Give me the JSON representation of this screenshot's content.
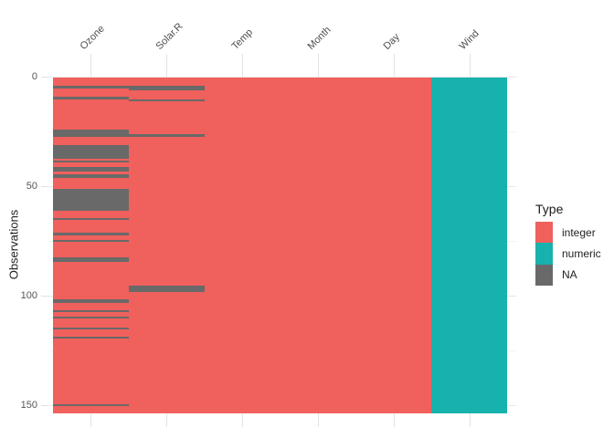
{
  "chart_data": {
    "type": "heatmap",
    "subtype": "missing-data-matrix (vis_dat style)",
    "title": "",
    "x_axis": {
      "position": "top",
      "labels": [
        "Ozone",
        "Solar.R",
        "Temp",
        "Month",
        "Day",
        "Wind"
      ]
    },
    "y_axis": {
      "label": "Observations",
      "ticks": [
        "0",
        "50",
        "100",
        "150"
      ],
      "tick_values": [
        0,
        50,
        100,
        150
      ],
      "minor_tick_values": [
        25,
        75,
        125
      ],
      "range": [
        0,
        153
      ],
      "reversed": true
    },
    "n_observations": 153,
    "columns": [
      {
        "name": "Ozone",
        "type": "integer",
        "na_rows": [
          [
            5,
            5
          ],
          [
            10,
            10
          ],
          [
            25,
            27
          ],
          [
            32,
            37
          ],
          [
            39,
            39
          ],
          [
            42,
            43
          ],
          [
            45,
            46
          ],
          [
            52,
            61
          ],
          [
            65,
            65
          ],
          [
            72,
            72
          ],
          [
            75,
            75
          ],
          [
            83,
            84
          ],
          [
            102,
            103
          ],
          [
            107,
            107
          ],
          [
            110,
            110
          ],
          [
            115,
            115
          ],
          [
            119,
            119
          ],
          [
            150,
            150
          ]
        ]
      },
      {
        "name": "Solar.R",
        "type": "integer",
        "na_rows": [
          [
            5,
            6
          ],
          [
            11,
            11
          ],
          [
            27,
            27
          ],
          [
            96,
            98
          ]
        ]
      },
      {
        "name": "Temp",
        "type": "integer",
        "na_rows": []
      },
      {
        "name": "Month",
        "type": "integer",
        "na_rows": []
      },
      {
        "name": "Day",
        "type": "integer",
        "na_rows": []
      },
      {
        "name": "Wind",
        "type": "numeric",
        "na_rows": []
      }
    ],
    "legend": {
      "title": "Type",
      "position": "right",
      "entries": [
        {
          "label": "integer",
          "color": "#f0605c"
        },
        {
          "label": "numeric",
          "color": "#17b2ad"
        },
        {
          "label": "NA",
          "color": "#696969"
        }
      ]
    },
    "colors": {
      "integer": "#f0605c",
      "numeric": "#17b2ad",
      "na": "#696969",
      "gridline_major": "#e8e8e8",
      "gridline_minor": "#f4f4f4",
      "tick": "#e2e2e2",
      "axis_text": "#555555"
    },
    "grid": true
  }
}
